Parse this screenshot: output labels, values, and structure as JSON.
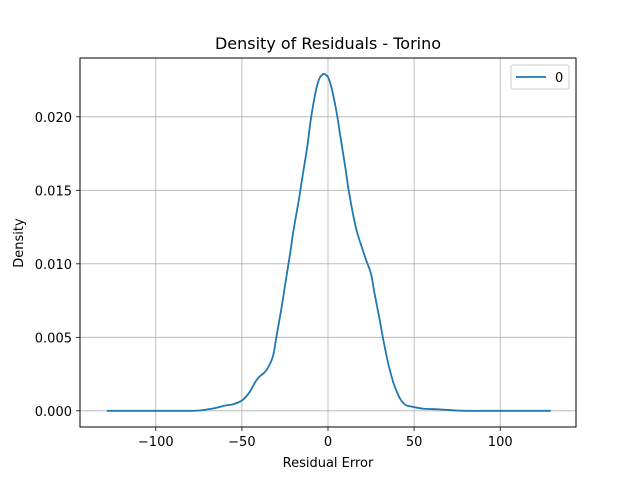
{
  "chart_data": {
    "type": "line",
    "title": "Density of Residuals - Torino",
    "xlabel": "Residual Error",
    "ylabel": "Density",
    "xlim": [
      -144,
      144
    ],
    "ylim": [
      -0.0011,
      0.024
    ],
    "grid": true,
    "legend": {
      "position": "top-right",
      "entries": [
        "0"
      ]
    },
    "x_ticks": [
      -100,
      -50,
      0,
      50,
      100
    ],
    "x_tick_labels": [
      "−100",
      "−50",
      "0",
      "50",
      "100"
    ],
    "y_ticks": [
      0.0,
      0.005,
      0.01,
      0.015,
      0.02
    ],
    "y_tick_labels": [
      "0.000",
      "0.005",
      "0.010",
      "0.015",
      "0.020"
    ],
    "colors": {
      "series": "#1f77b4",
      "grid": "#b0b0b0"
    },
    "series": [
      {
        "name": "0",
        "x": [
          -128,
          -110,
          -90,
          -80,
          -75,
          -70,
          -65,
          -60,
          -55,
          -50,
          -46,
          -42,
          -40,
          -37,
          -35,
          -32,
          -30,
          -27,
          -25,
          -22,
          -20,
          -17,
          -15,
          -12,
          -10,
          -7,
          -5,
          -3,
          -2,
          0,
          2,
          5,
          7,
          10,
          12,
          15,
          17,
          20,
          22,
          25,
          27,
          30,
          32,
          35,
          38,
          40,
          42,
          45,
          48,
          50,
          55,
          60,
          65,
          70,
          75,
          80,
          90,
          100,
          110,
          129
        ],
        "y": [
          0.0,
          0.0,
          0.0,
          0.0,
          2e-05,
          0.0001,
          0.0002,
          0.00035,
          0.00045,
          0.0007,
          0.0012,
          0.002,
          0.0023,
          0.0026,
          0.0029,
          0.0037,
          0.005,
          0.007,
          0.0085,
          0.0107,
          0.0123,
          0.0143,
          0.0158,
          0.018,
          0.0198,
          0.0218,
          0.0226,
          0.0229,
          0.0229,
          0.0227,
          0.022,
          0.0203,
          0.0188,
          0.0166,
          0.015,
          0.0131,
          0.0121,
          0.011,
          0.0103,
          0.0093,
          0.008,
          0.0062,
          0.0049,
          0.0032,
          0.0019,
          0.0013,
          0.0008,
          0.0004,
          0.0003,
          0.00025,
          0.00015,
          0.00012,
          0.0001,
          6e-05,
          2e-05,
          0.0,
          0.0,
          0.0,
          0.0,
          0.0
        ]
      }
    ]
  }
}
